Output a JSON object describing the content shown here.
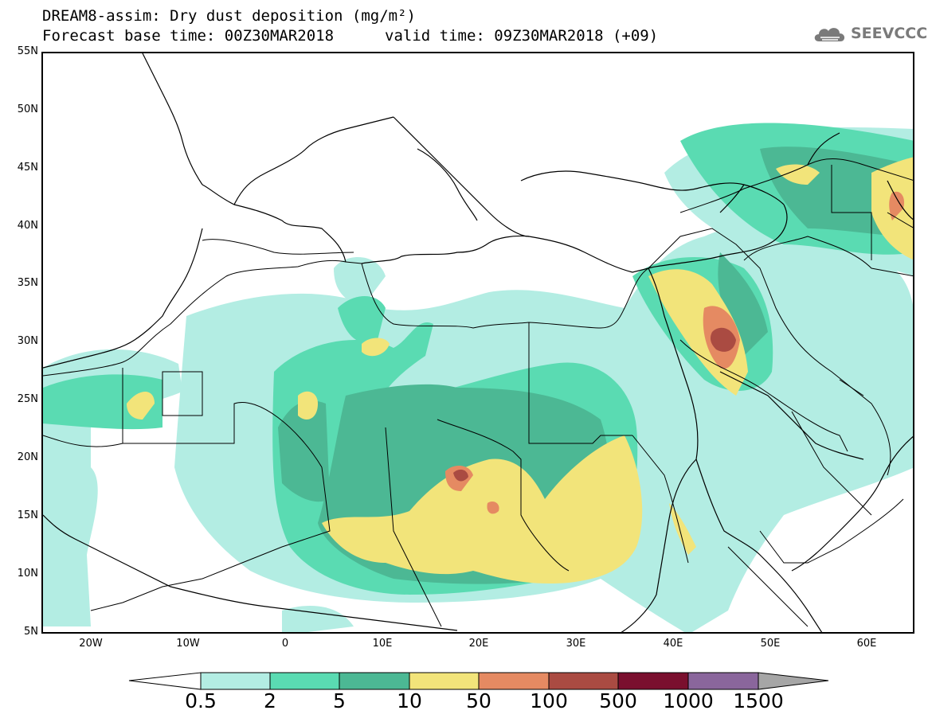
{
  "header": {
    "title_line1": "DREAM8-assim: Dry dust deposition (mg/m²)",
    "base_time": "Forecast base time: 00Z30MAR2018",
    "valid_time": "valid time: 09Z30MAR2018 (+09)"
  },
  "logo": {
    "text": "SEEVCCC",
    "icon": "cloud-icon",
    "color": "#7a7a7a"
  },
  "axes": {
    "lat_labels": [
      "55N",
      "50N",
      "45N",
      "40N",
      "35N",
      "30N",
      "25N",
      "20N",
      "15N",
      "10N",
      "5N"
    ],
    "lon_labels": [
      "20W",
      "10W",
      "0",
      "10E",
      "20E",
      "30E",
      "40E",
      "50E",
      "60E"
    ]
  },
  "colorbar": {
    "ticks": [
      "0.5",
      "2",
      "5",
      "10",
      "50",
      "100",
      "500",
      "1000",
      "1500"
    ],
    "colors": [
      "#ffffff",
      "#b3ede3",
      "#5adbb2",
      "#4cb894",
      "#f2e47a",
      "#e58a62",
      "#aa4b42",
      "#7a0f2e",
      "#8a669c",
      "#a6a6a6"
    ]
  },
  "map_colors": {
    "light": "#b3ede3",
    "medium": "#5adbb2",
    "dark": "#4cb894",
    "yellow": "#f2e47a",
    "orange": "#e58a62",
    "red": "#aa4b42",
    "border": "#000000"
  }
}
